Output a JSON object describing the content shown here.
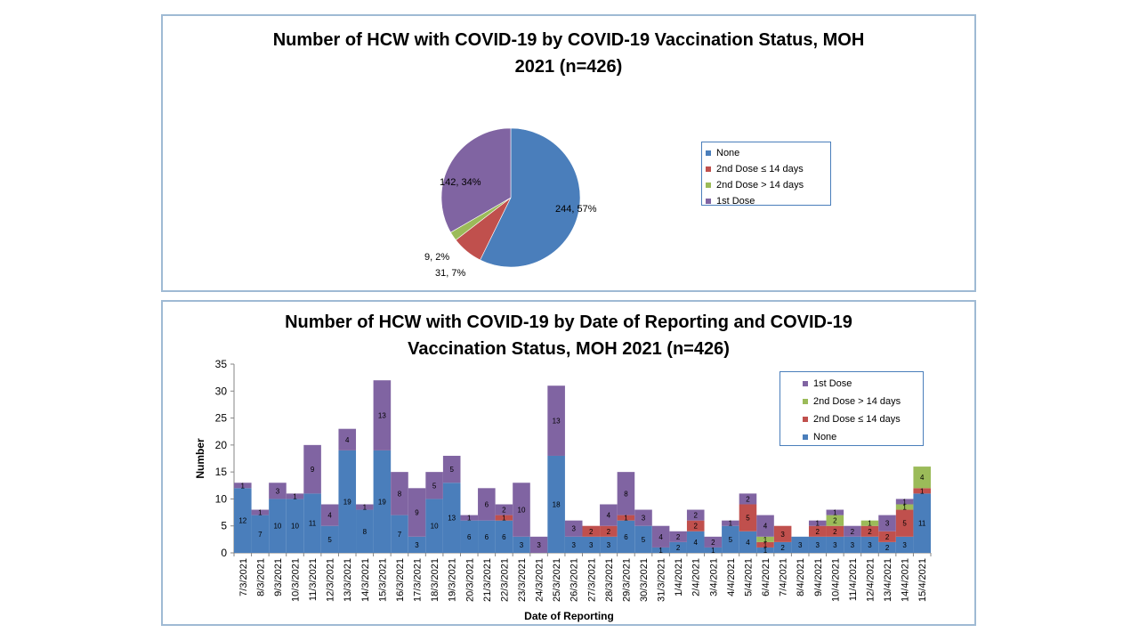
{
  "colors": {
    "none": "#4a7ebb",
    "dose2_le14": "#c0504d",
    "dose2_gt14": "#9bbb59",
    "dose1": "#8064a2"
  },
  "chart_data": [
    {
      "type": "pie",
      "title_lines": [
        "Number of HCW with COVID-19 by COVID-19 Vaccination Status, MOH",
        "2021 (n=426)"
      ],
      "legend": [
        "None",
        "2nd Dose ≤ 14 days",
        "2nd Dose > 14 days",
        "1st Dose"
      ],
      "slices": [
        {
          "name": "None",
          "value": 244,
          "percent": 57,
          "label": "244, 57%",
          "color": "#4a7ebb"
        },
        {
          "name": "2nd Dose ≤ 14 days",
          "value": 31,
          "percent": 7,
          "label": "31, 7%",
          "color": "#c0504d"
        },
        {
          "name": "2nd Dose > 14 days",
          "value": 9,
          "percent": 2,
          "label": "9, 2%",
          "color": "#9bbb59"
        },
        {
          "name": "1st Dose",
          "value": 142,
          "percent": 34,
          "label": "142, 34%",
          "color": "#8064a2"
        }
      ]
    },
    {
      "type": "bar",
      "stacked": true,
      "title_lines": [
        "Number of HCW with COVID-19 by Date of Reporting and COVID-19",
        "Vaccination Status, MOH 2021 (n=426)"
      ],
      "xlabel": "Date of Reporting",
      "ylabel": "Number",
      "ylim": [
        0,
        35
      ],
      "yticks": [
        0,
        5,
        10,
        15,
        20,
        25,
        30,
        35
      ],
      "xtick_labels": [
        "7/3/2021",
        "8/3/2021",
        "9/3/2021",
        "10/3/2021",
        "11/3/2021",
        "12/3/2021",
        "13/3/2021",
        "14/3/2021",
        "15/3/2021",
        "16/3/2021",
        "17/3/2021",
        "18/3/2021",
        "19/3/2021",
        "20/3/2021",
        "21/3/2021",
        "22/3/2021",
        "23/3/2021",
        "24/3/2021",
        "25/3/2021",
        "26/3/2021",
        "27/3/2021",
        "28/3/2021",
        "29/3/2021",
        "30/3/2021",
        "31/3/2021",
        "1/4/2021",
        "2/4/2021",
        "3/4/2021",
        "4/4/2021",
        "5/4/2021",
        "6/4/2021",
        "7/4/2021",
        "8/4/2021",
        "9/4/2021",
        "10/4/2021",
        "11/4/2021",
        "12/4/2021",
        "13/4/2021",
        "14/4/2021",
        "15/4/2021"
      ],
      "legend": [
        "1st Dose",
        "2nd Dose > 14 days",
        "2nd Dose ≤ 14 days",
        "None"
      ],
      "series": [
        {
          "name": "None",
          "color": "#4a7ebb",
          "values": [
            12,
            7,
            10,
            10,
            11,
            5,
            19,
            8,
            19,
            7,
            3,
            10,
            13,
            6,
            6,
            6,
            3,
            0,
            18,
            3,
            3,
            3,
            6,
            5,
            1,
            2,
            4,
            1,
            5,
            4,
            1,
            2,
            3,
            3,
            3,
            3,
            3,
            2,
            3,
            11
          ]
        },
        {
          "name": "2nd Dose ≤ 14 days",
          "color": "#c0504d",
          "values": [
            0,
            0,
            0,
            0,
            0,
            0,
            0,
            0,
            0,
            0,
            0,
            0,
            0,
            0,
            0,
            1,
            0,
            0,
            0,
            0,
            2,
            2,
            1,
            0,
            0,
            0,
            2,
            0,
            0,
            5,
            1,
            3,
            0,
            2,
            2,
            0,
            2,
            2,
            5,
            1
          ]
        },
        {
          "name": "2nd Dose > 14 days",
          "color": "#9bbb59",
          "values": [
            0,
            0,
            0,
            0,
            0,
            0,
            0,
            0,
            0,
            0,
            0,
            0,
            0,
            0,
            0,
            0,
            0,
            0,
            0,
            0,
            0,
            0,
            0,
            0,
            0,
            0,
            0,
            0,
            0,
            0,
            1,
            0,
            0,
            0,
            2,
            0,
            1,
            0,
            1,
            4
          ]
        },
        {
          "name": "1st Dose",
          "color": "#8064a2",
          "values": [
            1,
            1,
            3,
            1,
            9,
            4,
            4,
            1,
            13,
            8,
            9,
            5,
            5,
            1,
            6,
            2,
            10,
            3,
            13,
            3,
            0,
            4,
            8,
            3,
            4,
            2,
            2,
            2,
            1,
            2,
            4,
            0,
            0,
            1,
            1,
            2,
            0,
            3,
            1,
            0
          ]
        }
      ]
    }
  ]
}
